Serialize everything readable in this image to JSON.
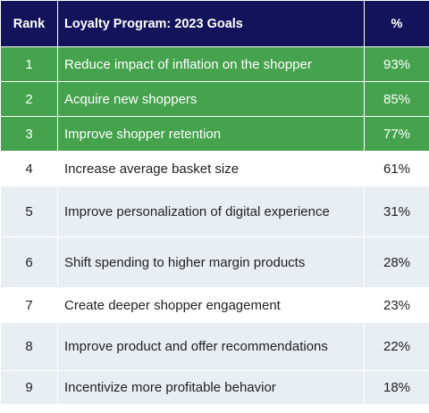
{
  "header": {
    "rank": "Rank",
    "goal": "Loyalty Program: 2023 Goals",
    "pct": "%"
  },
  "rows": [
    {
      "rank": "1",
      "goal": "Reduce impact of inflation on the shopper",
      "pct": "93%"
    },
    {
      "rank": "2",
      "goal": "Acquire new shoppers",
      "pct": "85%"
    },
    {
      "rank": "3",
      "goal": "Improve shopper retention",
      "pct": "77%"
    },
    {
      "rank": "4",
      "goal": "Increase average basket size",
      "pct": "61%"
    },
    {
      "rank": "5",
      "goal": "Improve personalization of digital experience",
      "pct": "31%"
    },
    {
      "rank": "6",
      "goal": "Shift spending to higher margin products",
      "pct": "28%"
    },
    {
      "rank": "7",
      "goal": "Create deeper shopper engagement",
      "pct": "23%"
    },
    {
      "rank": "8",
      "goal": "Improve product and offer recommendations",
      "pct": "22%"
    },
    {
      "rank": "9",
      "goal": "Incentivize more profitable behavior",
      "pct": "18%"
    }
  ],
  "colors": {
    "header_bg": "#12135a",
    "highlight_bg": "#45a24d",
    "alt_row_bg": "#e9eef3"
  }
}
